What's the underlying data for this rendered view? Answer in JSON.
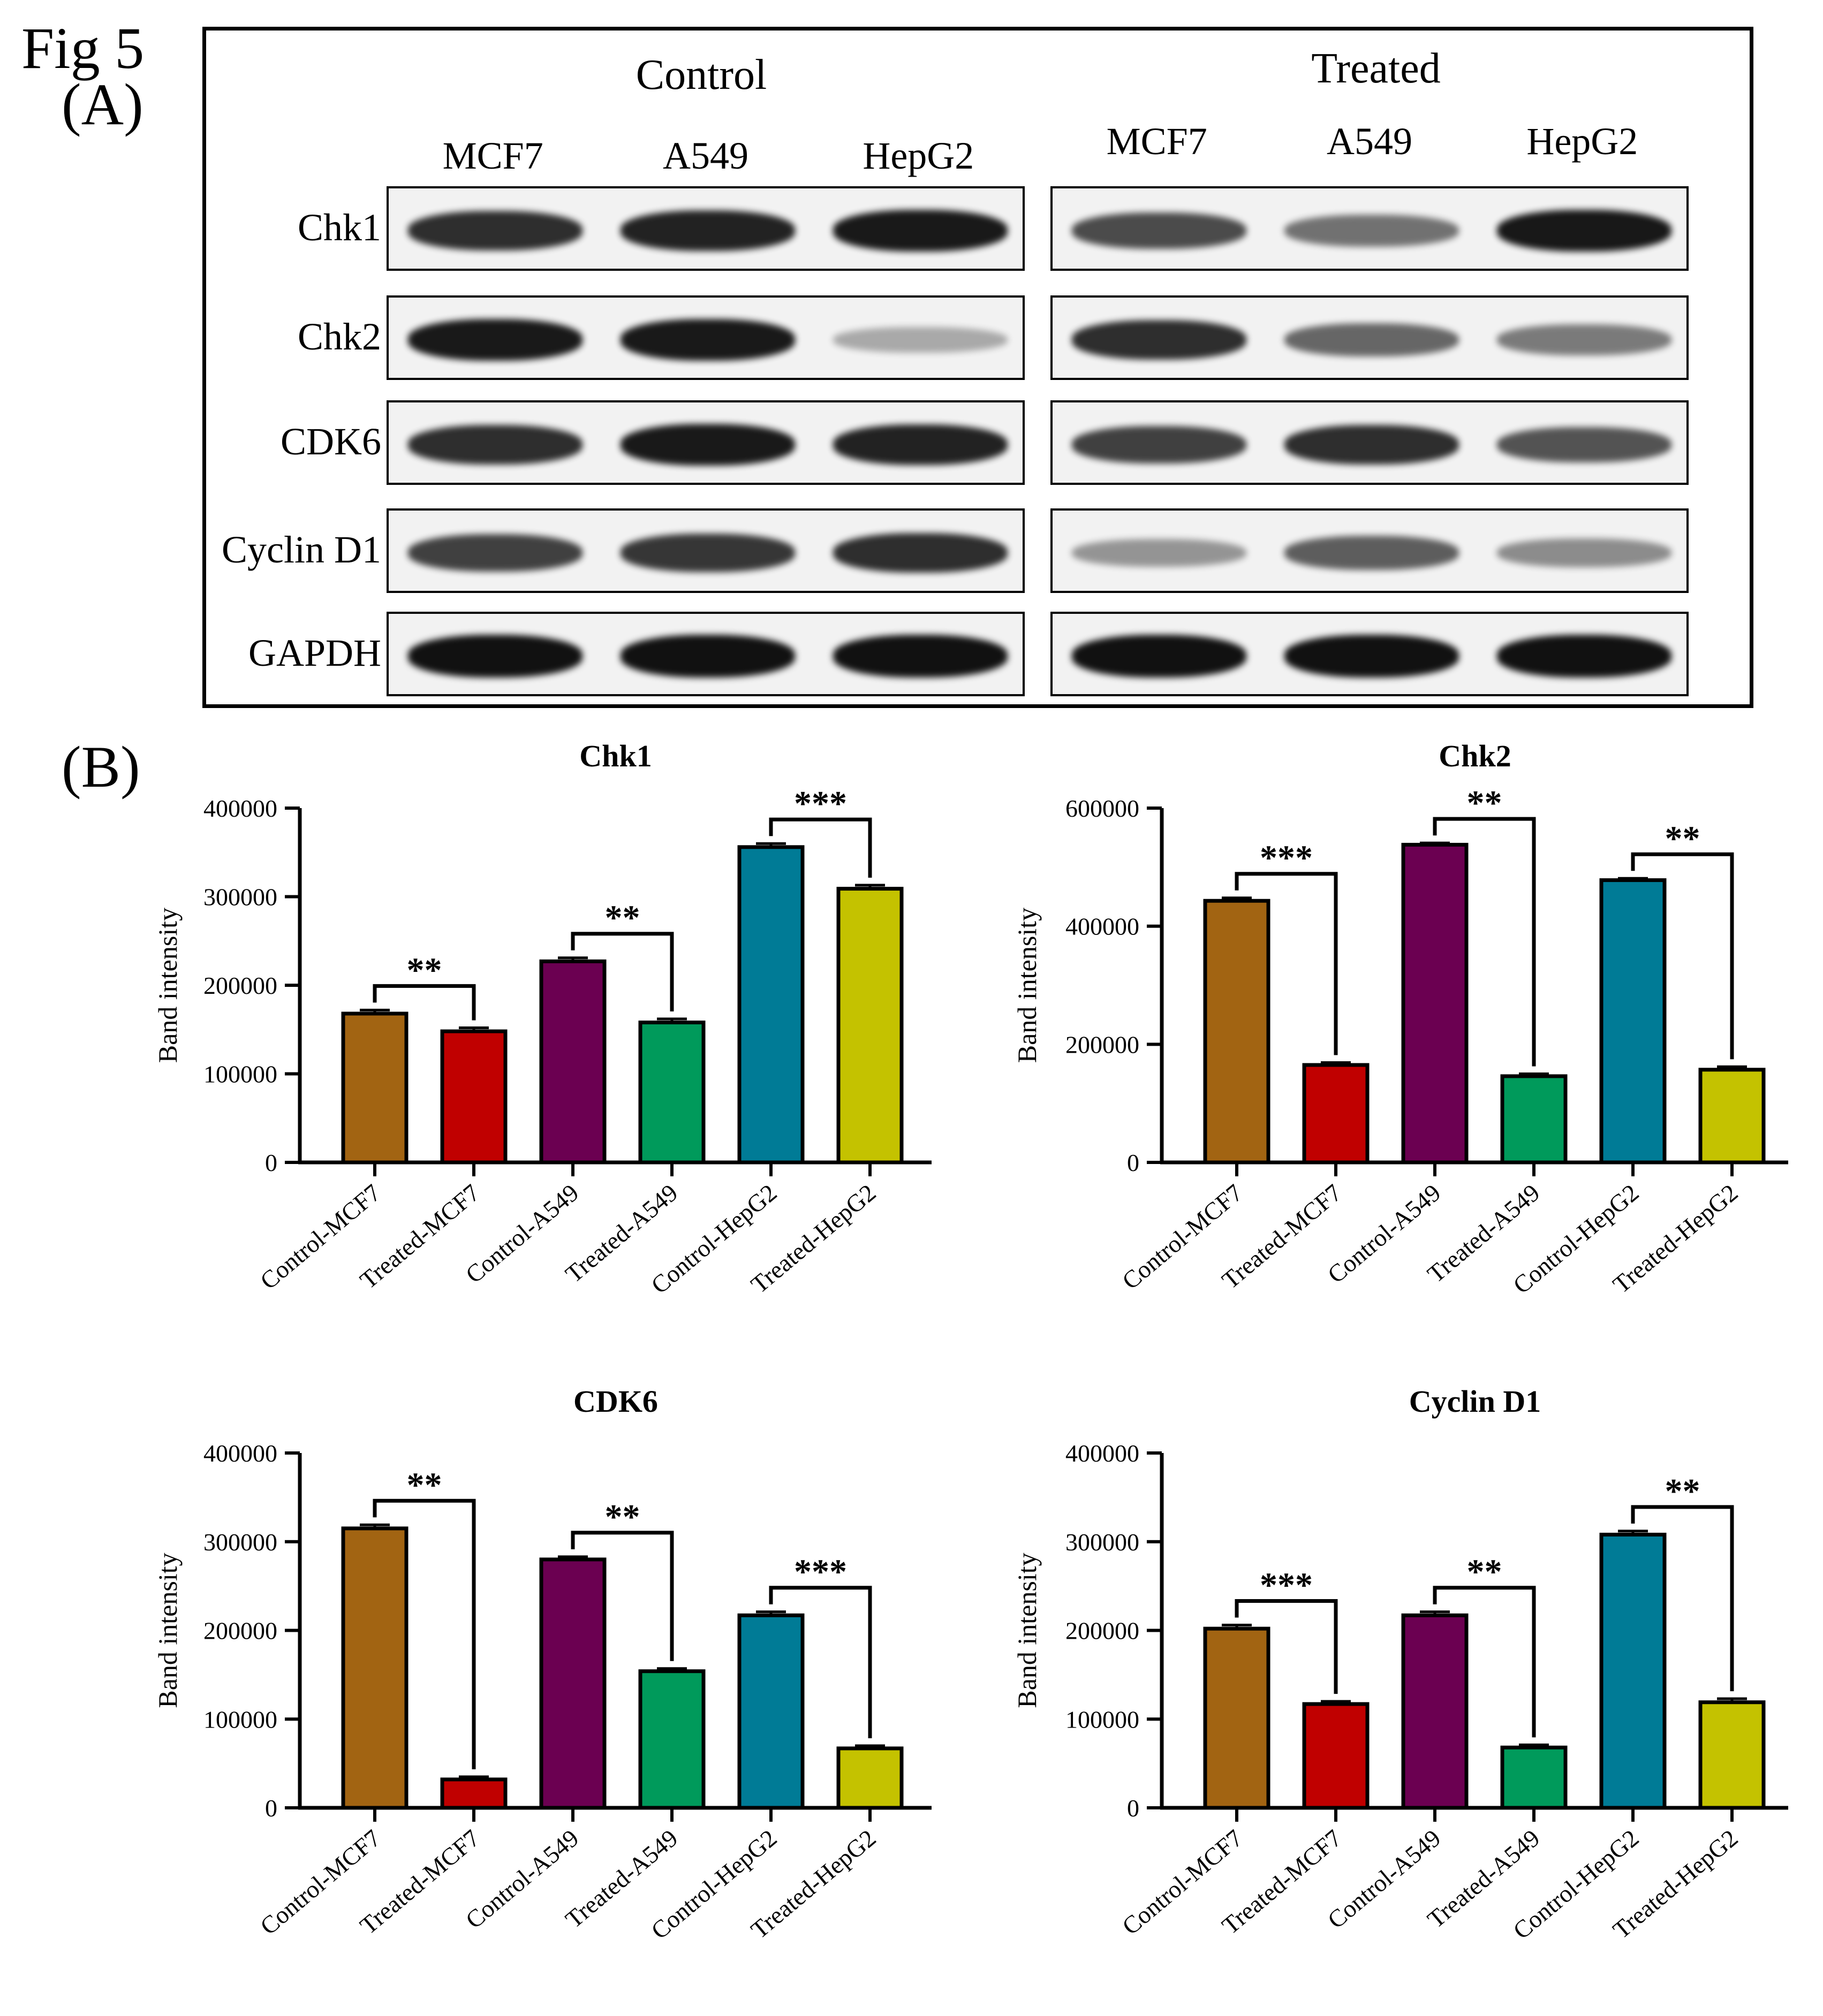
{
  "figure": {
    "fig_label": "Fig 5",
    "panel_a_label": "(A)",
    "panel_b_label": "(B)"
  },
  "western_blot": {
    "groups": [
      "Control",
      "Treated"
    ],
    "lanes": [
      "MCF7",
      "A549",
      "HepG2"
    ],
    "rows": [
      {
        "protein": "Chk1",
        "band_intensity": [
          0.85,
          0.9,
          0.95,
          0.7,
          0.5,
          0.97
        ]
      },
      {
        "protein": "Chk2",
        "band_intensity": [
          0.95,
          0.95,
          0.2,
          0.85,
          0.55,
          0.45
        ]
      },
      {
        "protein": "CDK6",
        "band_intensity": [
          0.85,
          0.95,
          0.9,
          0.75,
          0.85,
          0.65
        ]
      },
      {
        "protein": "Cyclin D1",
        "band_intensity": [
          0.75,
          0.8,
          0.85,
          0.3,
          0.6,
          0.35
        ]
      },
      {
        "protein": "GAPDH",
        "band_intensity": [
          1.0,
          1.0,
          1.0,
          1.0,
          1.0,
          1.0
        ]
      }
    ]
  },
  "chart_data": [
    {
      "type": "bar",
      "title": "Chk1",
      "ylabel": "Band intensity",
      "xlabel": "",
      "categories": [
        "Control-MCF7",
        "Treated-MCF7",
        "Control-A549",
        "Treated-A549",
        "Control-HepG2",
        "Treated-HepG2"
      ],
      "values": [
        168000,
        148000,
        227000,
        158000,
        356000,
        309000
      ],
      "errors": [
        4000,
        4000,
        4000,
        4000,
        4000,
        4000
      ],
      "ylim": [
        0,
        400000
      ],
      "yticks": [
        0,
        100000,
        200000,
        300000,
        400000
      ],
      "significance": [
        {
          "between": [
            0,
            1
          ],
          "label": "**"
        },
        {
          "between": [
            2,
            3
          ],
          "label": "**"
        },
        {
          "between": [
            4,
            5
          ],
          "label": "***"
        }
      ]
    },
    {
      "type": "bar",
      "title": "Chk2",
      "ylabel": "Band intensity",
      "xlabel": "",
      "categories": [
        "Control-MCF7",
        "Treated-MCF7",
        "Control-A549",
        "Treated-A549",
        "Control-HepG2",
        "Treated-HepG2"
      ],
      "values": [
        443000,
        165000,
        538000,
        146000,
        478000,
        157000
      ],
      "errors": [
        5000,
        4000,
        3000,
        4000,
        3000,
        5000
      ],
      "ylim": [
        0,
        600000
      ],
      "yticks": [
        0,
        200000,
        400000,
        600000
      ],
      "significance": [
        {
          "between": [
            0,
            1
          ],
          "label": "***"
        },
        {
          "between": [
            2,
            3
          ],
          "label": "**"
        },
        {
          "between": [
            4,
            5
          ],
          "label": "**"
        }
      ]
    },
    {
      "type": "bar",
      "title": "CDK6",
      "ylabel": "Band intensity",
      "xlabel": "",
      "categories": [
        "Control-MCF7",
        "Treated-MCF7",
        "Control-A549",
        "Treated-A549",
        "Control-HepG2",
        "Treated-HepG2"
      ],
      "values": [
        315000,
        32000,
        280000,
        154000,
        217000,
        67000
      ],
      "errors": [
        4000,
        3000,
        3000,
        3000,
        4000,
        3000
      ],
      "ylim": [
        0,
        400000
      ],
      "yticks": [
        0,
        100000,
        200000,
        300000,
        400000
      ],
      "significance": [
        {
          "between": [
            0,
            1
          ],
          "label": "**"
        },
        {
          "between": [
            2,
            3
          ],
          "label": "**"
        },
        {
          "between": [
            4,
            5
          ],
          "label": "***"
        }
      ]
    },
    {
      "type": "bar",
      "title": "Cyclin D1",
      "ylabel": "Band intensity",
      "xlabel": "",
      "categories": [
        "Control-MCF7",
        "Treated-MCF7",
        "Control-A549",
        "Treated-A549",
        "Control-HepG2",
        "Treated-HepG2"
      ],
      "values": [
        202000,
        117000,
        217000,
        68000,
        308000,
        119000
      ],
      "errors": [
        4000,
        3000,
        4000,
        3000,
        4000,
        4000
      ],
      "ylim": [
        0,
        400000
      ],
      "yticks": [
        0,
        100000,
        200000,
        300000,
        400000
      ],
      "significance": [
        {
          "between": [
            0,
            1
          ],
          "label": "***"
        },
        {
          "between": [
            2,
            3
          ],
          "label": "**"
        },
        {
          "between": [
            4,
            5
          ],
          "label": "**"
        }
      ]
    }
  ],
  "colors": {
    "bars": [
      "#A26412",
      "#C00000",
      "#6B0051",
      "#009A5B",
      "#007B96",
      "#C4C200"
    ],
    "frame": "#000000",
    "band": "#111111"
  }
}
